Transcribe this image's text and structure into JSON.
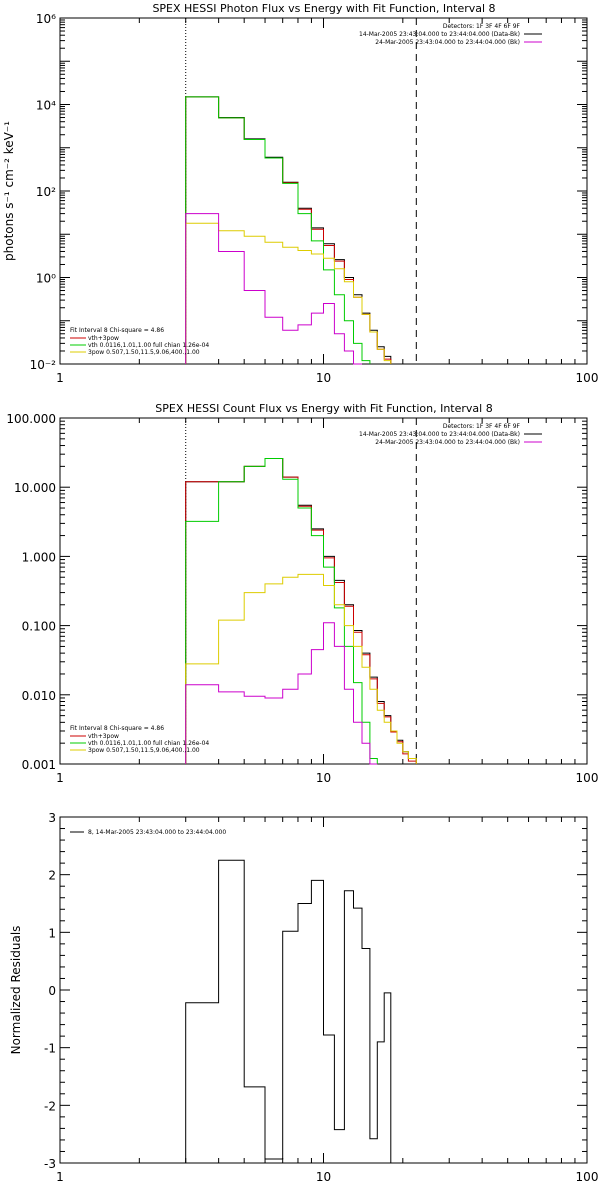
{
  "chart_data": [
    {
      "type": "line",
      "title": "SPEX HESSI Photon Flux vs Energy with Fit Function, Interval 8",
      "ylabel": "photons s⁻¹ cm⁻² keV⁻¹",
      "xlabel": "",
      "xscale": "log",
      "yscale": "log",
      "xlim": [
        1,
        100
      ],
      "ylim": [
        0.01,
        1000000
      ],
      "xticks": [
        1,
        10,
        100
      ],
      "xtick_labels": [
        "1",
        "10",
        "100"
      ],
      "yticks": [
        0.01,
        1,
        100,
        10000,
        1000000
      ],
      "ytick_labels": [
        "10⁻²",
        "10⁰",
        "10²",
        "10⁴",
        "10⁶"
      ],
      "vlines": [
        {
          "x": 3,
          "style": "dotted"
        },
        {
          "x": 22.5,
          "style": "dashed"
        }
      ],
      "legend_top": {
        "position": "top-right",
        "header": "Detectors: 1F 3F 4F 6F 9F",
        "entries": [
          {
            "label": "14-Mar-2005 23:43:04.000 to 23:44:04.000 (Data-Bk)",
            "color": "#000000"
          },
          {
            "label": "24-Mar-2005 23:43:04.000 to 23:44:04.000 (Bk)",
            "color": "#cc00cc"
          }
        ]
      },
      "legend_bottom": {
        "position": "bottom-left",
        "header": "Fit Interval 8   Chi-square = 4.86",
        "entries": [
          {
            "label": "vth+3pow",
            "color": "#cc0000"
          },
          {
            "label": "vth 0.0116,1.01,1.00  full chian 1.26e-04",
            "color": "#00cc00"
          },
          {
            "label": "3pow 0.507,1.50,11.5,9.06,400.,1.00",
            "color": "#ddcc00"
          }
        ]
      },
      "bin_edges": [
        3,
        4,
        5,
        6,
        7,
        8,
        9,
        10,
        11,
        12,
        13,
        14,
        15,
        16,
        17,
        18,
        19,
        20,
        21,
        22.5
      ],
      "series": [
        {
          "color": "#000000",
          "values": [
            15000,
            5000,
            1600,
            600,
            160,
            40,
            14,
            6,
            2.6,
            1.0,
            0.4,
            0.15,
            0.06,
            0.025,
            0.015,
            null,
            null,
            null,
            null
          ]
        },
        {
          "color": "#cc0000",
          "values": [
            15000,
            4900,
            1550,
            580,
            155,
            38,
            13,
            5.5,
            2.4,
            0.9,
            0.35,
            0.14,
            0.055,
            0.022,
            0.013,
            null,
            null,
            null,
            null
          ]
        },
        {
          "color": "#00cc00",
          "values": [
            15000,
            4900,
            1550,
            580,
            150,
            30,
            7,
            1.5,
            0.4,
            0.1,
            0.03,
            0.012,
            null,
            null,
            null,
            null,
            null,
            null,
            null
          ]
        },
        {
          "color": "#ddcc00",
          "values": [
            18,
            12,
            9,
            6.5,
            5,
            4.2,
            3.5,
            2.8,
            1.6,
            0.8,
            0.35,
            0.14,
            0.055,
            0.022,
            0.012,
            null,
            null,
            null,
            null
          ]
        },
        {
          "color": "#cc00cc",
          "values": [
            30,
            4,
            0.5,
            0.12,
            0.06,
            0.08,
            0.15,
            0.25,
            0.05,
            0.02,
            0.01,
            null,
            null,
            null,
            null,
            null,
            null,
            null,
            null
          ]
        }
      ]
    },
    {
      "type": "line",
      "title": "SPEX HESSI Count Flux vs Energy with Fit Function, Interval 8",
      "ylabel": "",
      "xlabel": "",
      "xscale": "log",
      "yscale": "log",
      "xlim": [
        1,
        100
      ],
      "ylim": [
        0.001,
        100
      ],
      "xticks": [
        1,
        10,
        100
      ],
      "xtick_labels": [
        "1",
        "10",
        "100"
      ],
      "yticks": [
        0.001,
        0.01,
        0.1,
        1,
        10,
        100
      ],
      "ytick_labels": [
        "0.001",
        "0.010",
        "0.100",
        "1.000",
        "10.000",
        "100.000"
      ],
      "vlines": [
        {
          "x": 3,
          "style": "dotted"
        },
        {
          "x": 22.5,
          "style": "dashed"
        }
      ],
      "legend_top": {
        "position": "top-right",
        "header": "Detectors: 1F 3F 4F 6F 9F",
        "entries": [
          {
            "label": "14-Mar-2005 23:43:04.000 to 23:44:04.000 (Data-Bk)",
            "color": "#000000"
          },
          {
            "label": "24-Mar-2005 23:43:04.000 to 23:44:04.000 (Bk)",
            "color": "#cc00cc"
          }
        ]
      },
      "legend_bottom": {
        "position": "bottom-left",
        "header": "Fit Interval 8   Chi-square = 4.86",
        "entries": [
          {
            "label": "vth+3pow",
            "color": "#cc0000"
          },
          {
            "label": "vth 0.0116,1.01,1.00  full chian 1.26e-04",
            "color": "#00cc00"
          },
          {
            "label": "3pow 0.507,1.50,11.5,9.06,400.,1.00",
            "color": "#ddcc00"
          }
        ]
      },
      "bin_edges": [
        3,
        4,
        5,
        6,
        7,
        8,
        9,
        10,
        11,
        12,
        13,
        14,
        15,
        16,
        17,
        18,
        19,
        20,
        21,
        22.5
      ],
      "series": [
        {
          "color": "#000000",
          "values": [
            12,
            12,
            20,
            26,
            14,
            5.5,
            2.5,
            1.0,
            0.45,
            0.2,
            0.085,
            0.04,
            0.018,
            0.008,
            0.005,
            0.003,
            0.0022,
            0.0015,
            0.0012
          ]
        },
        {
          "color": "#cc0000",
          "values": [
            12,
            12,
            20,
            26,
            14,
            5.3,
            2.4,
            0.95,
            0.42,
            0.19,
            0.08,
            0.038,
            0.017,
            0.0075,
            0.0048,
            0.0029,
            0.0021,
            0.0014,
            0.0011
          ]
        },
        {
          "color": "#00cc00",
          "values": [
            3.2,
            12,
            20,
            26,
            13,
            5,
            2,
            0.7,
            0.18,
            0.05,
            0.015,
            0.004,
            0.0012,
            null,
            null,
            null,
            null,
            null,
            null
          ]
        },
        {
          "color": "#ddcc00",
          "values": [
            0.028,
            0.12,
            0.3,
            0.4,
            0.5,
            0.55,
            0.55,
            0.38,
            0.2,
            0.1,
            0.05,
            0.025,
            0.012,
            0.006,
            0.004,
            0.003,
            0.002,
            0.0015,
            0.0012
          ]
        },
        {
          "color": "#cc00cc",
          "values": [
            0.014,
            0.011,
            0.0095,
            0.009,
            0.012,
            0.02,
            0.045,
            0.11,
            0.05,
            0.012,
            0.004,
            0.002,
            0.001,
            null,
            null,
            null,
            null,
            null,
            null
          ]
        }
      ]
    },
    {
      "type": "line",
      "title": "",
      "ylabel": "Normalized Residuals",
      "xlabel": "",
      "xscale": "log",
      "yscale": "linear",
      "xlim": [
        1,
        100
      ],
      "ylim": [
        -3,
        3
      ],
      "xticks": [
        1,
        10,
        100
      ],
      "xtick_labels": [
        "1",
        "10",
        "100"
      ],
      "yticks": [
        -3,
        -2,
        -1,
        0,
        1,
        2,
        3
      ],
      "ytick_labels": [
        "-3",
        "-2",
        "-1",
        "0",
        "1",
        "2",
        "3"
      ],
      "legend": {
        "position": "top-left",
        "entries": [
          {
            "label": "8, 14-Mar-2005 23:43:04.000 to 23:44:04.000",
            "color": "#000000"
          }
        ]
      },
      "bin_edges": [
        3,
        4,
        5,
        6,
        7,
        8,
        9,
        10,
        11,
        12,
        13,
        14,
        15,
        16,
        17,
        18,
        19,
        20,
        21,
        22.5
      ],
      "series": [
        {
          "color": "#000000",
          "values": [
            -0.22,
            2.25,
            -1.68,
            -2.93,
            1.02,
            1.5,
            1.9,
            -0.78,
            -2.42,
            1.72,
            1.42,
            0.72,
            -2.58,
            -0.9,
            -0.05,
            null,
            null,
            null,
            null
          ]
        }
      ]
    }
  ]
}
